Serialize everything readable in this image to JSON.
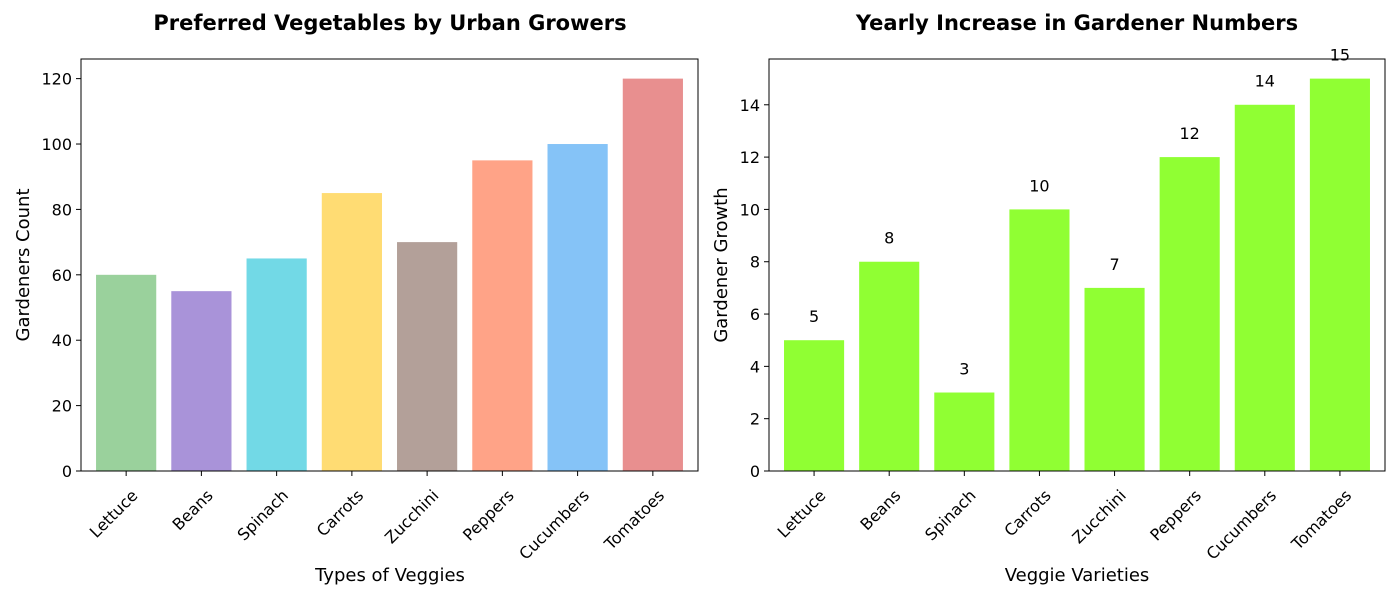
{
  "chart_data": [
    {
      "type": "bar",
      "title": "Preferred Vegetables by Urban Growers",
      "xlabel": "Types of Veggies",
      "ylabel": "Gardeners Count",
      "categories": [
        "Lettuce",
        "Beans",
        "Spinach",
        "Carrots",
        "Zucchini",
        "Peppers",
        "Cucumbers",
        "Tomatoes"
      ],
      "values": [
        60,
        55,
        65,
        85,
        70,
        95,
        100,
        120
      ],
      "colors": [
        "#9ad19c",
        "#a993d9",
        "#72d9e6",
        "#ffdc73",
        "#b3a099",
        "#ffa387",
        "#85c3f7",
        "#e88f8f"
      ],
      "ylim": [
        0,
        126
      ],
      "yticks": [
        0,
        20,
        40,
        60,
        80,
        100,
        120
      ],
      "grid": false,
      "data_labels": false
    },
    {
      "type": "bar",
      "title": "Yearly Increase in Gardener Numbers",
      "xlabel": "Veggie Varieties",
      "ylabel": "Gardener Growth",
      "categories": [
        "Lettuce",
        "Beans",
        "Spinach",
        "Carrots",
        "Zucchini",
        "Peppers",
        "Cucumbers",
        "Tomatoes"
      ],
      "values": [
        5,
        8,
        3,
        10,
        7,
        12,
        14,
        15
      ],
      "colors": [
        "#90ff33",
        "#90ff33",
        "#90ff33",
        "#90ff33",
        "#90ff33",
        "#90ff33",
        "#90ff33",
        "#90ff33"
      ],
      "ylim": [
        0,
        15.75
      ],
      "yticks": [
        0,
        2,
        4,
        6,
        8,
        10,
        12,
        14
      ],
      "grid": false,
      "data_labels": true
    }
  ]
}
